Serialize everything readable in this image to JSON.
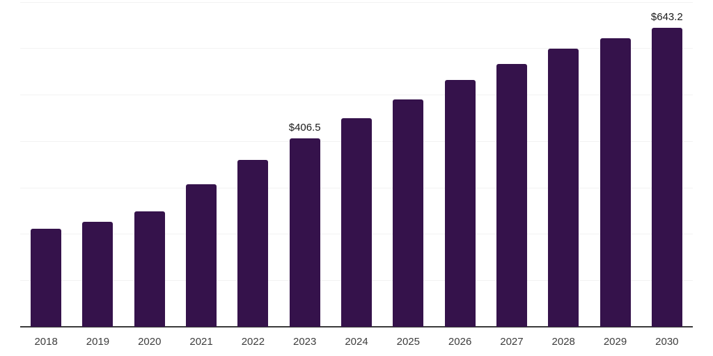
{
  "chart_data": {
    "type": "bar",
    "title": "",
    "xlabel": "",
    "ylabel": "",
    "categories": [
      "2018",
      "2019",
      "2020",
      "2021",
      "2022",
      "2023",
      "2024",
      "2025",
      "2026",
      "2027",
      "2028",
      "2029",
      "2030"
    ],
    "values": [
      211,
      226,
      248,
      307,
      359,
      406.5,
      449,
      490,
      531,
      566,
      599,
      622,
      643.2
    ],
    "value_labels": [
      {
        "index": 5,
        "text": "$406.5"
      },
      {
        "index": 12,
        "text": "$643.2"
      }
    ],
    "ylim": [
      0,
      700
    ],
    "gridline_step": 100,
    "grid": "horizontal",
    "legend": "none",
    "colors": {
      "bar": "#35124b",
      "grid": "#f2f2f2",
      "axis": "#3a3a3a",
      "tick_label": "#3d3d3d",
      "value_label": "#1a1a1a",
      "background": "#ffffff"
    }
  }
}
